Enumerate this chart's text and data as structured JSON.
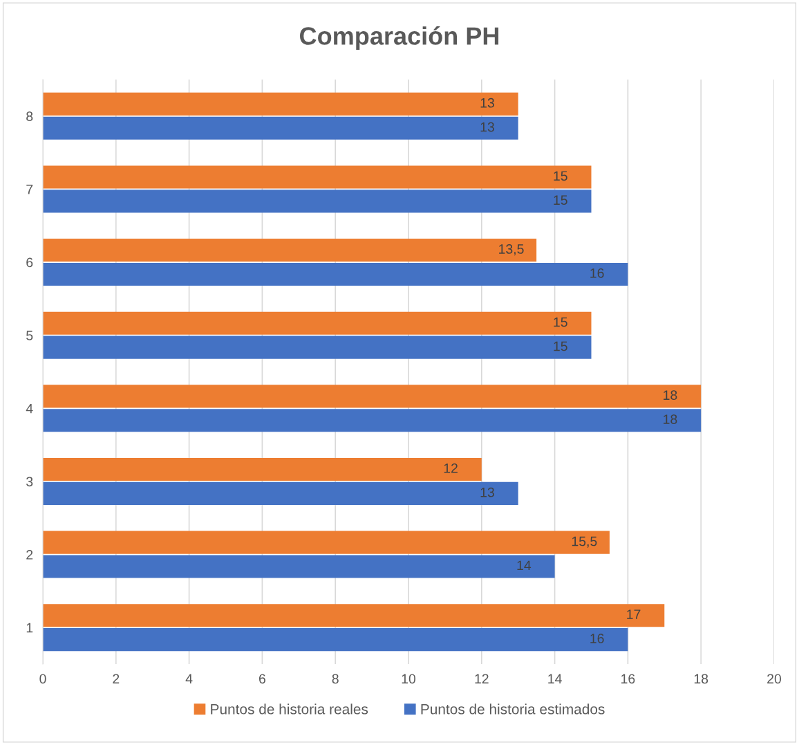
{
  "chart_data": {
    "type": "bar",
    "orientation": "horizontal",
    "title": "Comparación PH",
    "categories": [
      "8",
      "7",
      "6",
      "5",
      "4",
      "3",
      "2",
      "1"
    ],
    "series": [
      {
        "name": "Puntos de historia reales",
        "color": "#ed7d31",
        "values": [
          13,
          15,
          13.5,
          15,
          18,
          12,
          15.5,
          17
        ],
        "value_labels": [
          "13",
          "15",
          "13,5",
          "15",
          "18",
          "12",
          "15,5",
          "17"
        ]
      },
      {
        "name": "Puntos de historia estimados",
        "color": "#4472c4",
        "values": [
          13,
          15,
          16,
          15,
          18,
          13,
          14,
          16
        ],
        "value_labels": [
          "13",
          "15",
          "16",
          "15",
          "18",
          "13",
          "14",
          "16"
        ]
      }
    ],
    "xlim": [
      0,
      20
    ],
    "xticks": [
      0,
      2,
      4,
      6,
      8,
      10,
      12,
      14,
      16,
      18,
      20
    ],
    "grid": "x",
    "legend": "bottom"
  }
}
